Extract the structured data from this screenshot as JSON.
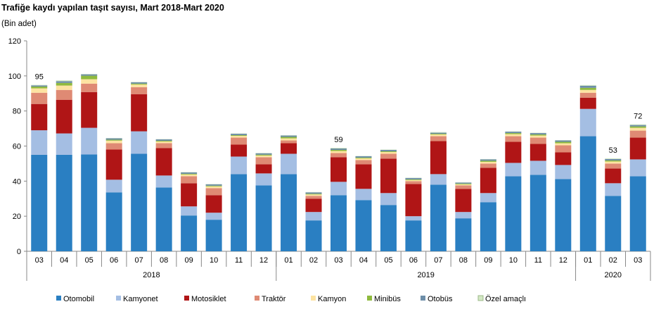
{
  "chart_data": {
    "type": "bar",
    "stacked": true,
    "title": "Trafiğe kaydı yapılan taşıt sayısı, Mart 2018-Mart 2020",
    "ylabel": "(Bin adet)",
    "ylim": [
      0,
      120
    ],
    "yticks": [
      0,
      20,
      40,
      60,
      80,
      100,
      120
    ],
    "categories": [
      "03",
      "04",
      "05",
      "06",
      "07",
      "08",
      "09",
      "10",
      "11",
      "12",
      "01",
      "02",
      "03",
      "04",
      "05",
      "06",
      "07",
      "08",
      "09",
      "10",
      "11",
      "12",
      "01",
      "02",
      "03"
    ],
    "years": [
      {
        "label": "2018",
        "count": 10
      },
      {
        "label": "2019",
        "count": 12
      },
      {
        "label": "2020",
        "count": 3
      }
    ],
    "legend_position": "bottom",
    "series": [
      {
        "name": "Otomobil",
        "color": "#2a7fc2",
        "values": [
          55,
          55,
          55.2,
          33.6,
          55.6,
          36.4,
          20.4,
          18,
          44,
          37.6,
          44,
          17.6,
          32,
          29.2,
          26.4,
          17.6,
          38,
          18.8,
          28,
          42.8,
          43.6,
          41.2,
          65.6,
          31.6,
          42.8
        ]
      },
      {
        "name": "Kamyonet",
        "color": "#a4bee3",
        "values": [
          14,
          12.2,
          15.2,
          7.2,
          12.8,
          6.8,
          5.2,
          4,
          10,
          6.8,
          11.6,
          4.8,
          7.6,
          6.4,
          6.8,
          2.4,
          6,
          3.6,
          5.2,
          7.6,
          8,
          8,
          15.6,
          7.2,
          9.6
        ]
      },
      {
        "name": "Motosiklet",
        "color": "#b01516",
        "values": [
          15,
          19.2,
          20.4,
          17.2,
          21.2,
          15.6,
          13.2,
          10,
          6.8,
          5.2,
          6,
          7.6,
          14,
          14,
          19.6,
          18.4,
          18.8,
          13.2,
          14.4,
          12,
          9.6,
          7.2,
          6.4,
          8.4,
          12.4
        ]
      },
      {
        "name": "Traktör",
        "color": "#df8a74",
        "values": [
          6.4,
          5.6,
          4.8,
          3.6,
          4,
          2.8,
          4,
          4,
          4,
          4,
          1.6,
          1.6,
          2.4,
          2.4,
          2.8,
          1.6,
          2.8,
          2,
          2.4,
          3.2,
          3.6,
          4,
          2.8,
          2.8,
          4
        ]
      },
      {
        "name": "Kamyon",
        "color": "#fde3a1",
        "values": [
          2.5,
          2.5,
          2.5,
          1.5,
          1.5,
          1,
          1,
          1,
          1,
          1,
          1.2,
          0.8,
          1.2,
          1,
          1,
          0.6,
          1,
          0.6,
          1,
          1.2,
          1.2,
          1.2,
          1.6,
          1.2,
          1.6
        ]
      },
      {
        "name": "Minibüs",
        "color": "#8fba3e",
        "values": [
          1,
          1.5,
          2,
          0.5,
          0.5,
          0.4,
          0.4,
          0.4,
          0.4,
          0.5,
          0.8,
          0.4,
          0.6,
          0.4,
          0.4,
          0.4,
          0.4,
          0.4,
          0.6,
          0.6,
          0.6,
          0.8,
          1.2,
          0.6,
          0.8
        ]
      },
      {
        "name": "Otobüs",
        "color": "#6d8ea8",
        "values": [
          0.7,
          1,
          0.8,
          0.8,
          0.8,
          0.8,
          0.8,
          0.8,
          0.8,
          0.8,
          0.8,
          0.8,
          0.8,
          0.8,
          0.8,
          0.8,
          0.6,
          0.6,
          0.8,
          0.8,
          0.8,
          0.8,
          1.2,
          0.8,
          0.8
        ]
      },
      {
        "name": "Özel amaçlı",
        "color": "#d3e8c4",
        "values": [
          0.3,
          0.5,
          0.2,
          0.2,
          0.2,
          0.2,
          0.2,
          0.2,
          0.2,
          0.2,
          0.2,
          0.2,
          0.4,
          0.2,
          0.2,
          0.2,
          0.4,
          0.2,
          0.2,
          0.2,
          0.2,
          0.2,
          0.4,
          0.4,
          0.4
        ]
      }
    ],
    "annotations": [
      {
        "index": 0,
        "text": "95"
      },
      {
        "index": 12,
        "text": "59"
      },
      {
        "index": 23,
        "text": "53"
      },
      {
        "index": 24,
        "text": "72"
      }
    ]
  }
}
